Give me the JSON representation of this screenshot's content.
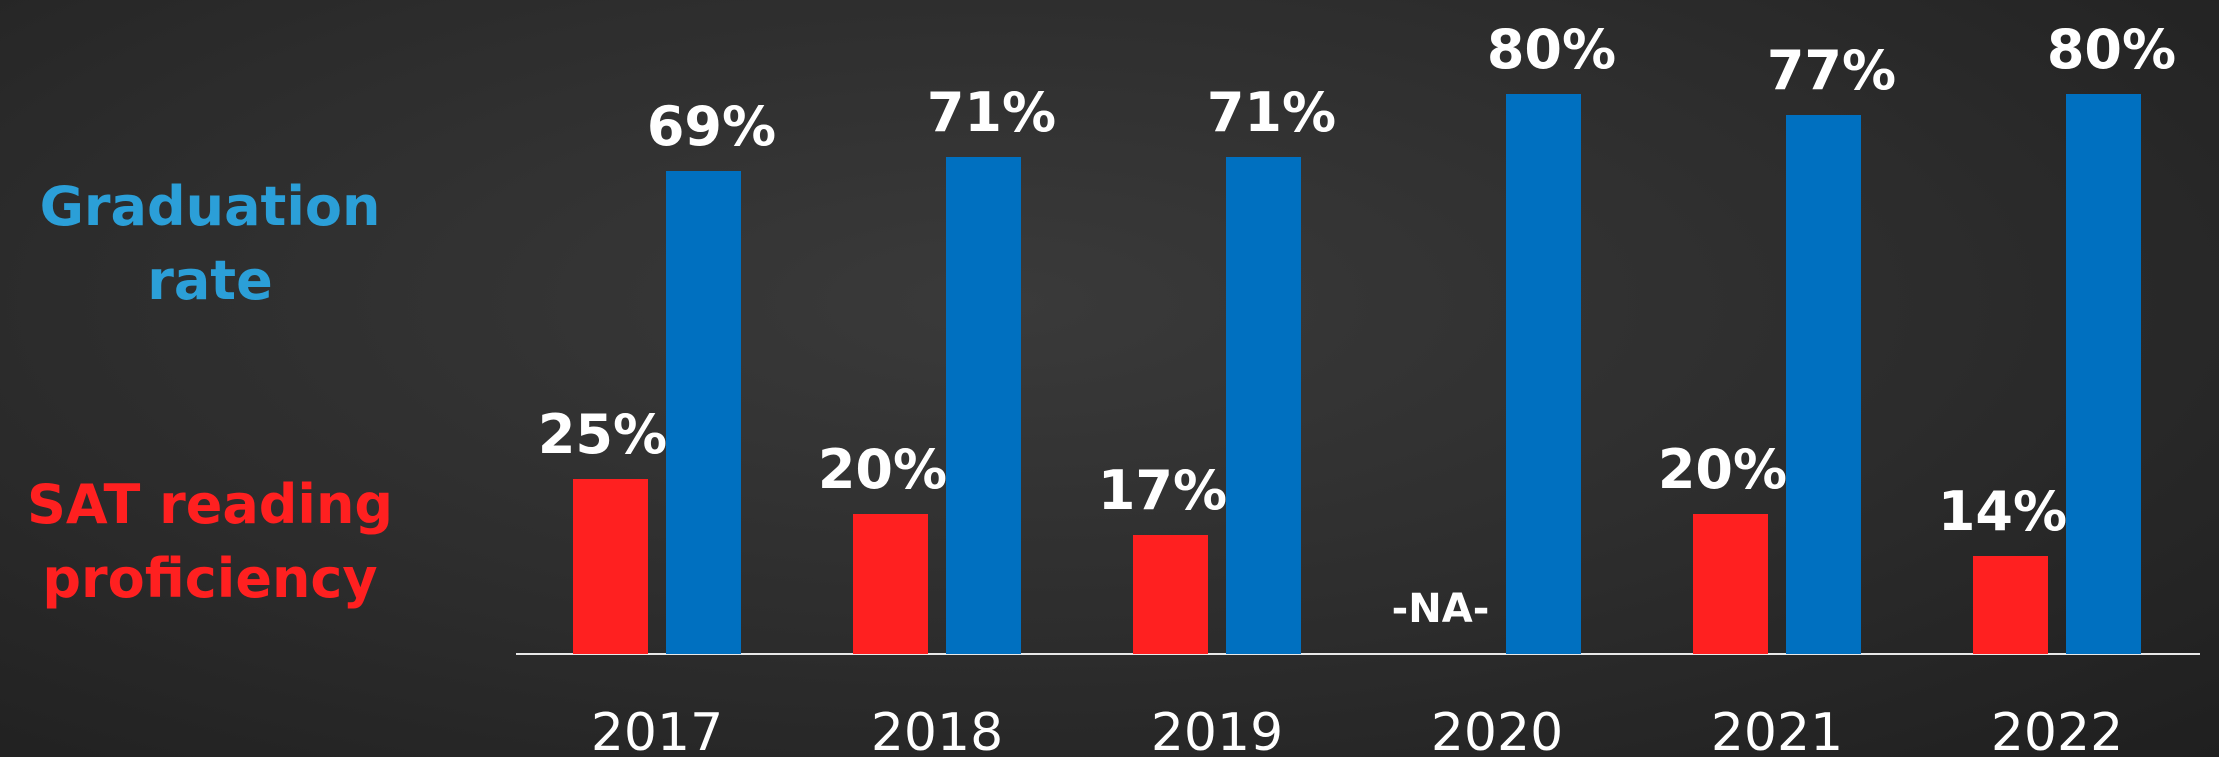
{
  "chart_data": {
    "type": "bar",
    "categories": [
      "2017",
      "2018",
      "2019",
      "2020",
      "2021",
      "2022"
    ],
    "series": [
      {
        "name": "SAT reading proficiency",
        "color": "#ff2020",
        "legend_color": "#ff2020",
        "values": [
          25,
          20,
          17,
          null,
          20,
          14
        ],
        "value_labels": [
          "25%",
          "20%",
          "17%",
          "-NA-",
          "20%",
          "14%"
        ]
      },
      {
        "name": "Graduation rate",
        "color": "#0070c0",
        "legend_color": "#2b9fd8",
        "values": [
          69,
          71,
          71,
          80,
          77,
          80
        ],
        "value_labels": [
          "69%",
          "71%",
          "71%",
          "80%",
          "77%",
          "80%"
        ]
      }
    ]
  }
}
